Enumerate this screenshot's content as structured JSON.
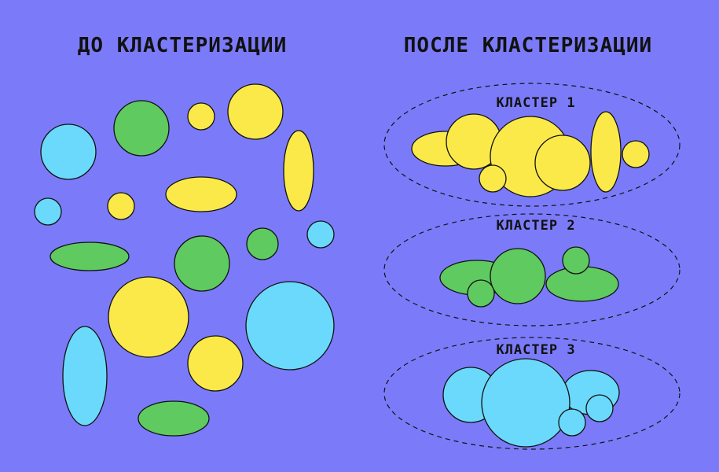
{
  "titles": {
    "before": "ДО КЛАСТЕРИЗАЦИИ",
    "after": "ПОСЛЕ КЛАСТЕРИЗАЦИИ"
  },
  "clusters": [
    {
      "label": "КЛАСТЕР 1",
      "color": "yellow"
    },
    {
      "label": "КЛАСТЕР 2",
      "color": "green"
    },
    {
      "label": "КЛАСТЕР 3",
      "color": "blue"
    }
  ],
  "colors": {
    "background": "#7b7bf9",
    "yellow": "#fbe94a",
    "green": "#5fca5f",
    "blue": "#6ad9fb",
    "outline": "#111111"
  }
}
